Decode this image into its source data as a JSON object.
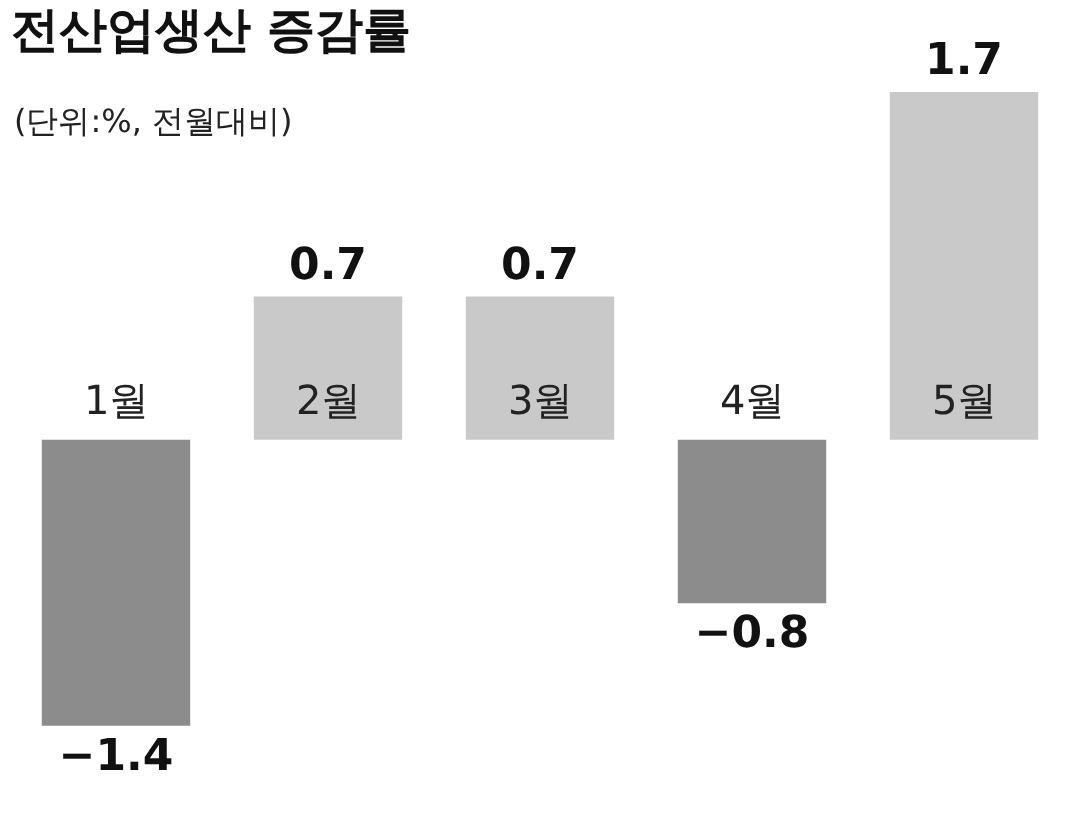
{
  "chart_data": {
    "type": "bar",
    "title": "전산업생산 증감률",
    "subtitle": "(단위:%, 전월대비)",
    "categories": [
      "1월",
      "2월",
      "3월",
      "4월",
      "5월"
    ],
    "values": [
      -1.4,
      0.7,
      0.7,
      -0.8,
      1.7
    ],
    "colors": [
      "#8c8c8c",
      "#c9c9c9",
      "#c9c9c9",
      "#8c8c8c",
      "#c9c9c9"
    ],
    "data_labels": true
  }
}
